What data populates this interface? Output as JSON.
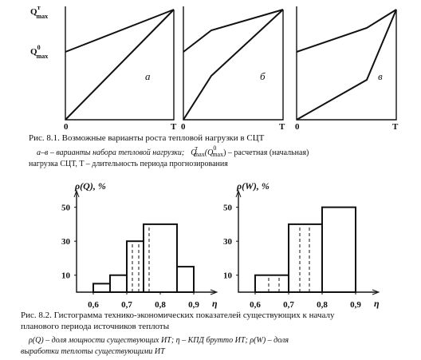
{
  "figure_8_1": {
    "panels": [
      {
        "letter": "а",
        "origin": "0",
        "x_axis": "T"
      },
      {
        "letter": "б",
        "origin": "0",
        "x_axis": "T"
      },
      {
        "letter": "в",
        "origin": "0",
        "x_axis": "T"
      }
    ],
    "y_levels": [
      {
        "symbol": "Q",
        "sup": "т",
        "sub": "max"
      },
      {
        "symbol": "Q",
        "sup": "0",
        "sub": "max"
      }
    ],
    "caption": "Рис. 8.1. Возможные варианты роста тепловой нагрузки в СЦТ",
    "note_line_1": [
      "а–в – варианты набора тепловой нагрузки;",
      "Q",
      "т",
      "max",
      "(Q",
      "0",
      "max",
      ") – расчетная (начальная)"
    ],
    "note_line_2": "нагрузка СЦТ, T – длительность периода прогнозирования"
  },
  "figure_8_2": {
    "charts": [
      {
        "type": "histogram",
        "y_label": "ρ(Q), %",
        "x_label": "η",
        "bins": [
          0.6,
          0.65,
          0.7,
          0.75,
          0.85,
          0.9
        ],
        "values": [
          5,
          10,
          30,
          40,
          15
        ],
        "xlim": [
          0.55,
          0.95
        ],
        "ylim": [
          0,
          55
        ],
        "xticks": [
          {
            "value": 0.6,
            "label": "0,6"
          },
          {
            "value": 0.7,
            "label": "0,7"
          },
          {
            "value": 0.8,
            "label": "0,8"
          },
          {
            "value": 0.9,
            "label": "0,9"
          }
        ],
        "yticks": [
          10,
          30,
          50
        ],
        "color": "#111111"
      },
      {
        "type": "histogram",
        "y_label": "ρ(W), %",
        "x_label": "η",
        "bins": [
          0.6,
          0.7,
          0.8,
          0.9
        ],
        "values": [
          10,
          40,
          50
        ],
        "xlim": [
          0.55,
          0.95
        ],
        "ylim": [
          0,
          55
        ],
        "xticks": [
          {
            "value": 0.6,
            "label": "0,6"
          },
          {
            "value": 0.7,
            "label": "0,7"
          },
          {
            "value": 0.8,
            "label": "0,8"
          },
          {
            "value": 0.9,
            "label": "0,9"
          }
        ],
        "yticks": [
          10,
          30,
          50
        ],
        "color": "#111111"
      }
    ],
    "caption_lines": [
      "Рис. 8.2. Гистограмма технико-экономических показателей существующих к началу",
      "планового периода источников теплоты"
    ],
    "note_lines": [
      "ρ(Q) – доля мощности существующих ИТ;  η – КПД брутто ИТ;  ρ(W) – доля",
      "выработки теплоты существующими ИТ"
    ]
  }
}
